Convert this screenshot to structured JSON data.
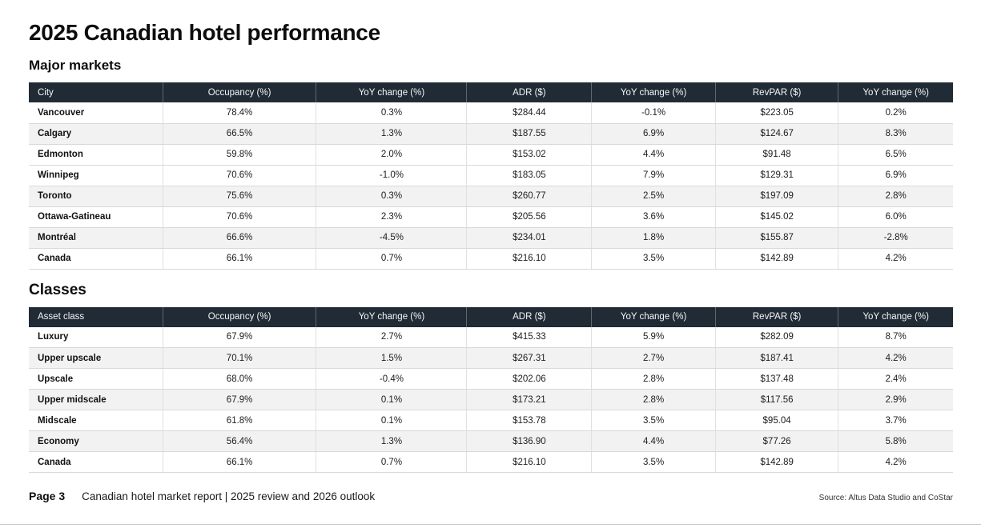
{
  "page": {
    "title": "2025 Canadian hotel performance",
    "footer": {
      "page_label": "Page 3",
      "report_title": "Canadian hotel market report | 2025 review and 2026 outlook",
      "source": "Source: Altus Data Studio and CoStar"
    }
  },
  "colors": {
    "table_header_bg": "#212b36",
    "table_header_text": "#f4f6f8",
    "row_stripe": "#f2f2f2",
    "row_border": "#d9d9d9"
  },
  "tables": [
    {
      "section_title": "Major markets",
      "columns": [
        "City",
        "Occupancy (%)",
        "YoY change (%)",
        "ADR ($)",
        "YoY change (%)",
        "RevPAR ($)",
        "YoY change (%)"
      ],
      "rows": [
        {
          "cells": [
            "Vancouver",
            "78.4%",
            "0.3%",
            "$284.44",
            "-0.1%",
            "$223.05",
            "0.2%"
          ],
          "shaded": false
        },
        {
          "cells": [
            "Calgary",
            "66.5%",
            "1.3%",
            "$187.55",
            "6.9%",
            "$124.67",
            "8.3%"
          ],
          "shaded": true
        },
        {
          "cells": [
            "Edmonton",
            "59.8%",
            "2.0%",
            "$153.02",
            "4.4%",
            "$91.48",
            "6.5%"
          ],
          "shaded": false
        },
        {
          "cells": [
            "Winnipeg",
            "70.6%",
            "-1.0%",
            "$183.05",
            "7.9%",
            "$129.31",
            "6.9%"
          ],
          "shaded": false
        },
        {
          "cells": [
            "Toronto",
            "75.6%",
            "0.3%",
            "$260.77",
            "2.5%",
            "$197.09",
            "2.8%"
          ],
          "shaded": true
        },
        {
          "cells": [
            "Ottawa-Gatineau",
            "70.6%",
            "2.3%",
            "$205.56",
            "3.6%",
            "$145.02",
            "6.0%"
          ],
          "shaded": false
        },
        {
          "cells": [
            "Montréal",
            "66.6%",
            "-4.5%",
            "$234.01",
            "1.8%",
            "$155.87",
            "-2.8%"
          ],
          "shaded": true
        },
        {
          "cells": [
            "Canada",
            "66.1%",
            "0.7%",
            "$216.10",
            "3.5%",
            "$142.89",
            "4.2%"
          ],
          "shaded": false
        }
      ]
    },
    {
      "section_title": "Classes",
      "columns": [
        "Asset class",
        "Occupancy (%)",
        "YoY change (%)",
        "ADR ($)",
        "YoY change (%)",
        "RevPAR ($)",
        "YoY change (%)"
      ],
      "rows": [
        {
          "cells": [
            "Luxury",
            "67.9%",
            "2.7%",
            "$415.33",
            "5.9%",
            "$282.09",
            "8.7%"
          ],
          "shaded": false
        },
        {
          "cells": [
            "Upper upscale",
            "70.1%",
            "1.5%",
            "$267.31",
            "2.7%",
            "$187.41",
            "4.2%"
          ],
          "shaded": true
        },
        {
          "cells": [
            "Upscale",
            "68.0%",
            "-0.4%",
            "$202.06",
            "2.8%",
            "$137.48",
            "2.4%"
          ],
          "shaded": false
        },
        {
          "cells": [
            "Upper midscale",
            "67.9%",
            "0.1%",
            "$173.21",
            "2.8%",
            "$117.56",
            "2.9%"
          ],
          "shaded": true
        },
        {
          "cells": [
            "Midscale",
            "61.8%",
            "0.1%",
            "$153.78",
            "3.5%",
            "$95.04",
            "3.7%"
          ],
          "shaded": false
        },
        {
          "cells": [
            "Economy",
            "56.4%",
            "1.3%",
            "$136.90",
            "4.4%",
            "$77.26",
            "5.8%"
          ],
          "shaded": true
        },
        {
          "cells": [
            "Canada",
            "66.1%",
            "0.7%",
            "$216.10",
            "3.5%",
            "$142.89",
            "4.2%"
          ],
          "shaded": false
        }
      ]
    }
  ]
}
